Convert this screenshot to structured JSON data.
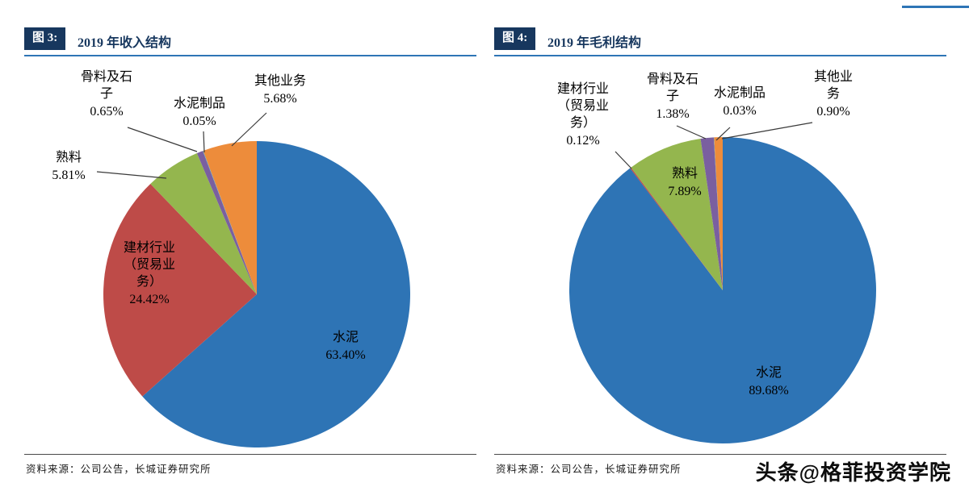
{
  "page": {
    "watermark": "头条@格菲投资学院"
  },
  "theme": {
    "badge_bg": "#17375E",
    "title_color": "#17375E",
    "rule_color": "#2E75B6"
  },
  "chart_data": [
    {
      "type": "pie",
      "fig_label": "图 3:",
      "title": "2019 年收入结构",
      "source": "资料来源：公司公告，长城证券研究所",
      "start_angle": "12 o'clock",
      "direction": "clockwise",
      "legend": "none (callout labels)",
      "categories": [
        "水泥",
        "建材行业（贸易业务）",
        "熟料",
        "骨料及石子",
        "水泥制品",
        "其他业务"
      ],
      "slice_keys": [
        "cement",
        "trade-business",
        "clinker",
        "aggregate",
        "cement-products",
        "other"
      ],
      "values": [
        63.4,
        24.42,
        5.81,
        0.65,
        0.05,
        5.68
      ],
      "pct_labels": [
        "63.40%",
        "24.42%",
        "5.81%",
        "0.65%",
        "0.05%",
        "5.68%"
      ],
      "colors": [
        "#2E74B5",
        "#BE4B48",
        "#94B64E",
        "#7A5FA0",
        "#4BACC6",
        "#ED8C3B"
      ]
    },
    {
      "type": "pie",
      "fig_label": "图 4:",
      "title": "2019 年毛利结构",
      "source": "资料来源：公司公告，长城证券研究所",
      "start_angle": "12 o'clock",
      "direction": "clockwise",
      "legend": "none (callout labels)",
      "categories": [
        "水泥",
        "建材行业（贸易业务）",
        "熟料",
        "骨料及石子",
        "水泥制品",
        "其他业务"
      ],
      "slice_keys": [
        "cement",
        "trade-business",
        "clinker",
        "aggregate",
        "cement-products",
        "other"
      ],
      "values": [
        89.68,
        0.12,
        7.89,
        1.38,
        0.03,
        0.9
      ],
      "pct_labels": [
        "89.68%",
        "0.12%",
        "7.89%",
        "1.38%",
        "0.03%",
        "0.90%"
      ],
      "colors": [
        "#2E74B5",
        "#BE4B48",
        "#94B64E",
        "#7A5FA0",
        "#4BACC6",
        "#ED8C3B"
      ]
    }
  ]
}
